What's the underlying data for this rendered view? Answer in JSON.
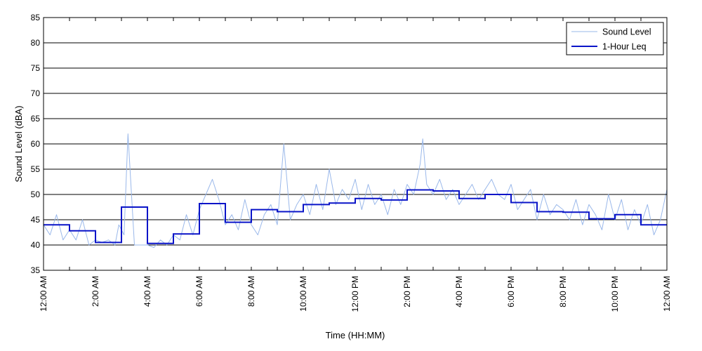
{
  "chart_data": {
    "type": "line",
    "title": "",
    "xlabel": "Time (HH:MM)",
    "ylabel": "Sound Level (dBA)",
    "ylim": [
      35,
      85
    ],
    "y_ticks": [
      35,
      40,
      45,
      50,
      55,
      60,
      65,
      70,
      75,
      80,
      85
    ],
    "xlim_hours": [
      0,
      24
    ],
    "x_tick_labels": [
      "12:00 AM",
      "2:00 AM",
      "4:00 AM",
      "6:00 AM",
      "8:00 AM",
      "10:00 AM",
      "12:00 PM",
      "2:00 PM",
      "4:00 PM",
      "6:00 PM",
      "8:00 PM",
      "10:00 PM",
      "12:00 AM"
    ],
    "grid": "horizontal",
    "legend_position": "top-right",
    "series": [
      {
        "name": "Sound Level",
        "style": "thin line",
        "color": "#9ab8ea",
        "x_hours": [
          0,
          0.25,
          0.5,
          0.75,
          1,
          1.25,
          1.5,
          1.75,
          2,
          2.25,
          2.5,
          2.75,
          2.9,
          3.1,
          3.25,
          3.5,
          3.75,
          4,
          4.25,
          4.5,
          4.75,
          5,
          5.25,
          5.5,
          5.75,
          6,
          6.25,
          6.5,
          6.75,
          7,
          7.25,
          7.5,
          7.75,
          8,
          8.25,
          8.5,
          8.75,
          9,
          9.25,
          9.5,
          9.75,
          10,
          10.25,
          10.5,
          10.75,
          11,
          11.25,
          11.5,
          11.75,
          12,
          12.25,
          12.5,
          12.75,
          13,
          13.25,
          13.5,
          13.75,
          14,
          14.25,
          14.5,
          14.6,
          14.75,
          15,
          15.25,
          15.5,
          15.75,
          16,
          16.25,
          16.5,
          16.75,
          17,
          17.25,
          17.5,
          17.75,
          18,
          18.25,
          18.5,
          18.75,
          19,
          19.25,
          19.5,
          19.75,
          20,
          20.25,
          20.5,
          20.75,
          21,
          21.25,
          21.5,
          21.75,
          22,
          22.25,
          22.5,
          22.75,
          23,
          23.25,
          23.5,
          23.75,
          24
        ],
        "values": [
          44,
          42,
          46,
          41,
          43,
          41,
          45,
          40,
          41,
          40.5,
          41,
          40,
          44,
          42,
          62,
          40,
          40,
          40,
          39.5,
          41,
          40,
          42,
          41,
          46,
          42,
          47,
          50,
          53,
          49,
          44,
          46,
          43,
          49,
          44,
          42,
          46,
          48,
          44,
          60,
          45,
          48,
          50,
          46,
          52,
          47,
          55,
          48,
          51,
          49,
          53,
          47,
          52,
          48,
          50,
          46,
          51,
          48,
          52,
          50,
          56,
          61,
          52,
          50,
          53,
          49,
          51,
          48,
          50,
          52,
          49,
          51,
          53,
          50,
          49,
          52,
          47,
          49,
          51,
          45,
          50,
          46,
          48,
          47,
          45,
          49,
          44,
          48,
          46,
          43,
          50,
          45,
          49,
          43,
          47,
          44,
          48,
          42,
          45,
          51
        ]
      },
      {
        "name": "1-Hour Leq",
        "style": "step line",
        "color": "#0a14c8",
        "hour_start": [
          0,
          1,
          2,
          3,
          4,
          5,
          6,
          7,
          8,
          9,
          10,
          11,
          12,
          13,
          14,
          15,
          16,
          17,
          18,
          19,
          20,
          21,
          22,
          23
        ],
        "values": [
          44.0,
          42.8,
          40.5,
          47.5,
          40.3,
          42.2,
          48.2,
          44.5,
          47.0,
          46.6,
          48.0,
          48.3,
          49.2,
          48.9,
          50.9,
          50.7,
          49.2,
          50.0,
          48.4,
          46.6,
          46.5,
          45.2,
          46.0,
          44.0
        ]
      }
    ]
  }
}
